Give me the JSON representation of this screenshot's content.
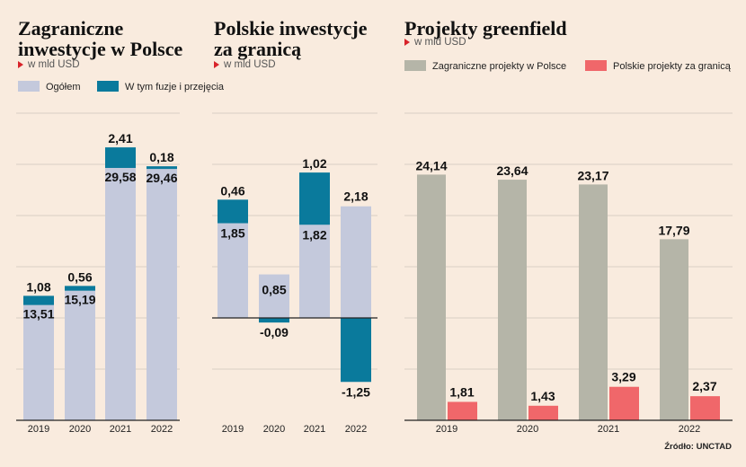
{
  "colors": {
    "total": "#c4c9dc",
    "ma": "#0a7a9c",
    "foreign_greenfield": "#b5b5a8",
    "polish_greenfield": "#f0676a",
    "grid": "#d9cfc4",
    "axis": "#222222"
  },
  "panels": {
    "p1": {
      "title_line1": "Zagraniczne",
      "title_line2": "inwestycje w Polsce",
      "unit": "w mld USD"
    },
    "p2": {
      "title_line1": "Polskie inwestycje",
      "title_line2": "za granicą",
      "unit": "w mld USD"
    },
    "p3": {
      "title_line1": "Projekty greenfield",
      "unit": "w mld USD"
    }
  },
  "legends": {
    "total": "Ogółem",
    "ma": "W tym fuzje i przejęcia",
    "foreign_greenfield": "Zagraniczne projekty w Polsce",
    "polish_greenfield": "Polskie projekty za granicą"
  },
  "source": "Źródło: UNCTAD",
  "chart_data": [
    {
      "type": "bar",
      "stacked": true,
      "categories": [
        "2019",
        "2020",
        "2021",
        "2022"
      ],
      "series": [
        {
          "name": "Ogółem",
          "values": [
            13.51,
            15.19,
            29.58,
            29.46
          ],
          "labels": [
            "13,51",
            "15,19",
            "29,58",
            "29,46"
          ]
        },
        {
          "name": "W tym fuzje i przejęcia",
          "values": [
            1.08,
            0.56,
            2.41,
            0.18
          ],
          "labels": [
            "1,08",
            "0,56",
            "2,41",
            "0,18"
          ]
        }
      ],
      "ylim": [
        0,
        36
      ],
      "grid": true
    },
    {
      "type": "bar",
      "stacked": true,
      "categories": [
        "2019",
        "2020",
        "2021",
        "2022"
      ],
      "series": [
        {
          "name": "Ogółem",
          "values": [
            1.85,
            0.85,
            1.82,
            2.18
          ],
          "labels": [
            "1,85",
            "0,85",
            "1,82",
            "2,18"
          ]
        },
        {
          "name": "W tym fuzje i przejęcia",
          "values": [
            0.46,
            -0.09,
            1.02,
            -1.25
          ],
          "labels": [
            "0,46",
            "-0,09",
            "1,02",
            "-1,25"
          ]
        }
      ],
      "ylim": [
        -2,
        4
      ],
      "grid": true
    },
    {
      "type": "bar",
      "categories": [
        "2019",
        "2020",
        "2021",
        "2022"
      ],
      "series": [
        {
          "name": "Zagraniczne projekty w Polsce",
          "values": [
            24.14,
            23.64,
            23.17,
            17.79
          ],
          "labels": [
            "24,14",
            "23,64",
            "23,17",
            "17,79"
          ]
        },
        {
          "name": "Polskie projekty za granicą",
          "values": [
            1.81,
            1.43,
            3.29,
            2.37
          ],
          "labels": [
            "1,81",
            "1,43",
            "3,29",
            "2,37"
          ]
        }
      ],
      "ylim": [
        0,
        30
      ],
      "grid": true
    }
  ]
}
